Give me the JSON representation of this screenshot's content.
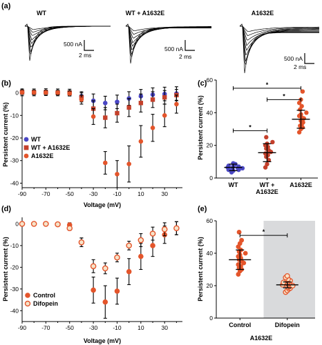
{
  "colors": {
    "wt": "#4a47c4",
    "wt_a1632e": "#c4402b",
    "a1632e": "#e4552b",
    "control": "#e4552b",
    "difopein_edge": "#e4552b",
    "difopein_fill": "#f6e3c9",
    "shade": "#d9dadc",
    "axis": "#000000"
  },
  "panel_a": {
    "label": "(a)",
    "traces": [
      {
        "title": "WT",
        "scale_current": "500 nA",
        "scale_time": "2 ms"
      },
      {
        "title": "WT + A1632E",
        "scale_current": "500 nA",
        "scale_time": "2 ms"
      },
      {
        "title": "A1632E",
        "scale_current": "500 nA",
        "scale_time": "2 ms"
      }
    ]
  },
  "chart_data": [
    {
      "panel": "(b)",
      "type": "scatter",
      "xlabel": "Voltage (mV)",
      "ylabel": "Persistent current (%)",
      "xlim": [
        -90,
        45
      ],
      "ylim": [
        -42,
        2
      ],
      "xticks": [
        -90,
        -70,
        -50,
        -30,
        -10,
        10,
        30
      ],
      "yticks": [
        0,
        -10,
        -20,
        -30,
        -40
      ],
      "x": [
        -90,
        -80,
        -70,
        -60,
        -50,
        -40,
        -30,
        -20,
        -10,
        0,
        10,
        20,
        30,
        40
      ],
      "legend_position": "left",
      "series": [
        {
          "name": "WT",
          "values": [
            0.2,
            0.2,
            0.3,
            0.2,
            0.1,
            -1.5,
            -3.5,
            -4.5,
            -4,
            -2.5,
            -1.5,
            -0.8,
            -0.5,
            -0.3
          ],
          "errors": [
            1.5,
            1.5,
            1.5,
            1.5,
            1.5,
            2,
            3,
            3,
            3,
            3,
            3,
            3,
            3,
            3
          ]
        },
        {
          "name": "WT + A1632E",
          "values": [
            0.3,
            0.2,
            0.2,
            0.1,
            0,
            -2,
            -7,
            -11,
            -9,
            -6.5,
            -4.5,
            -3,
            -2,
            -1
          ],
          "errors": [
            1,
            1,
            1,
            1,
            1,
            2,
            3.5,
            4.5,
            4,
            4,
            4,
            3.5,
            3,
            2.5
          ]
        },
        {
          "name": "A1632E",
          "values": [
            0.2,
            0.2,
            0.1,
            0.1,
            -0.3,
            -3,
            -10.5,
            -31,
            -36,
            -31.5,
            -21.5,
            -15.5,
            -10,
            -5
          ],
          "errors": [
            0.8,
            0.8,
            0.8,
            0.8,
            1,
            2,
            3.5,
            5,
            6,
            8,
            7,
            6,
            5,
            4
          ]
        }
      ]
    },
    {
      "panel": "(c)",
      "type": "scatter",
      "xlabel": "",
      "ylabel": "Persistent current (%)",
      "ylim": [
        0,
        60
      ],
      "yticks": [
        0,
        20,
        40,
        60
      ],
      "categories": [
        "WT",
        "WT + A1632E",
        "A1632E"
      ],
      "category_lines": [
        [
          "WT"
        ],
        [
          "WT +",
          "A1632E"
        ],
        [
          "A1632E"
        ]
      ],
      "series": [
        {
          "name": "WT",
          "mean": 6.5,
          "sd": 2,
          "values": [
            3.5,
            4.5,
            5,
            5.5,
            6,
            6.5,
            7,
            7,
            7.5,
            8,
            8.5,
            9,
            6,
            5
          ]
        },
        {
          "name": "WT + A1632E",
          "mean": 15.5,
          "sd": 5.5,
          "values": [
            6.5,
            8.5,
            11,
            13,
            14,
            15,
            16,
            17,
            18,
            19,
            20,
            21,
            22,
            25
          ]
        },
        {
          "name": "A1632E",
          "mean": 36,
          "sd": 5.5,
          "values": [
            28,
            30,
            31,
            32,
            33,
            34,
            35,
            36,
            36.5,
            37,
            38,
            39,
            40,
            42,
            44,
            46,
            48,
            53
          ]
        }
      ],
      "significance": [
        {
          "from": 0,
          "to": 2,
          "y": 55,
          "label": "*"
        },
        {
          "from": 1,
          "to": 2,
          "y": 48,
          "label": "*"
        },
        {
          "from": 0,
          "to": 1,
          "y": 29,
          "label": "*"
        }
      ]
    },
    {
      "panel": "(d)",
      "type": "scatter",
      "xlabel": "Voltage (mV)",
      "ylabel": "Persistent current (%)",
      "xlim": [
        -90,
        45
      ],
      "ylim": [
        -45,
        3
      ],
      "xticks": [
        -90,
        -70,
        -50,
        -30,
        -10,
        10,
        30
      ],
      "yticks": [
        0,
        -10,
        -20,
        -30,
        -40
      ],
      "x": [
        -90,
        -80,
        -70,
        -60,
        -50,
        -40,
        -30,
        -20,
        -10,
        0,
        10,
        20,
        30,
        40
      ],
      "legend_position": "bottom-left",
      "series": [
        {
          "name": "Control",
          "values": [
            0,
            0,
            0,
            -0.3,
            -0.5,
            -8.5,
            -30.5,
            -36,
            -31,
            -22,
            -15,
            -10,
            -5,
            -2
          ],
          "errors": [
            0.5,
            0.5,
            0.5,
            0.8,
            1,
            2,
            6,
            7.5,
            6,
            6,
            6,
            5,
            4,
            3
          ]
        },
        {
          "name": "Difopein",
          "values": [
            0,
            0,
            0,
            -0.2,
            -2,
            -8.5,
            -19.5,
            -20.5,
            -15.5,
            -10,
            -7.5,
            -4.5,
            -2.5,
            -2
          ],
          "errors": [
            0.5,
            0.5,
            0.5,
            0.5,
            1,
            2,
            3,
            2.5,
            2,
            2,
            3,
            3,
            3,
            3
          ]
        }
      ]
    },
    {
      "panel": "(e)",
      "type": "scatter",
      "xlabel": "A1632E",
      "ylabel": "Persistent current (%)",
      "ylim": [
        0,
        60
      ],
      "yticks": [
        0,
        20,
        40,
        60
      ],
      "categories": [
        "Control",
        "Difopein"
      ],
      "shaded_category": "Difopein",
      "series": [
        {
          "name": "Control",
          "mean": 36,
          "sd": 6,
          "values": [
            27,
            29,
            30,
            31,
            32,
            33,
            34,
            35,
            36,
            37,
            38,
            39,
            40,
            41,
            42,
            44,
            46,
            48,
            53
          ]
        },
        {
          "name": "Difopein",
          "mean": 20.5,
          "sd": 1.8,
          "values": [
            16,
            17,
            18,
            18.5,
            19,
            19.5,
            20,
            20,
            20.5,
            21,
            21.5,
            22,
            22.5,
            23,
            24,
            25,
            26
          ]
        }
      ],
      "significance": [
        {
          "from": 0,
          "to": 1,
          "y": 51,
          "label": "*"
        }
      ]
    }
  ]
}
